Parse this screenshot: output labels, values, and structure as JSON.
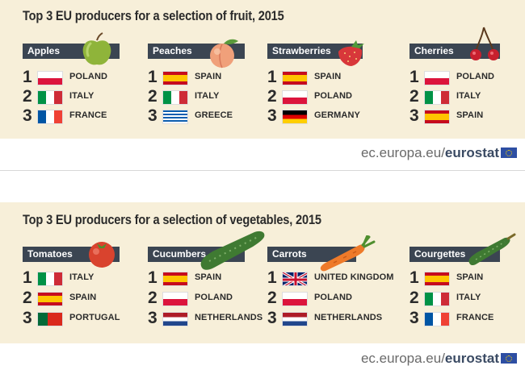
{
  "fruit": {
    "title": "Top 3 EU producers for a selection of fruit, 2015",
    "products": [
      {
        "name": "Apples",
        "icon": "apple-icon",
        "ranking": [
          "POLAND",
          "ITALY",
          "FRANCE"
        ]
      },
      {
        "name": "Peaches",
        "icon": "peach-icon",
        "ranking": [
          "SPAIN",
          "ITALY",
          "GREECE"
        ]
      },
      {
        "name": "Strawberries",
        "icon": "strawberry-icon",
        "ranking": [
          "SPAIN",
          "POLAND",
          "GERMANY"
        ]
      },
      {
        "name": "Cherries",
        "icon": "cherries-icon",
        "ranking": [
          "POLAND",
          "ITALY",
          "SPAIN"
        ]
      }
    ],
    "footer_domain": "ec.europa.eu/",
    "footer_brand": "eurostat"
  },
  "veg": {
    "title": "Top 3 EU producers for a selection of vegetables, 2015",
    "products": [
      {
        "name": "Tomatoes",
        "icon": "tomato-icon",
        "ranking": [
          "ITALY",
          "SPAIN",
          "PORTUGAL"
        ]
      },
      {
        "name": "Cucumbers",
        "icon": "cucumber-icon",
        "ranking": [
          "SPAIN",
          "POLAND",
          "NETHERLANDS"
        ]
      },
      {
        "name": "Carrots",
        "icon": "carrot-icon",
        "ranking": [
          "UNITED KINGDOM",
          "POLAND",
          "NETHERLANDS"
        ]
      },
      {
        "name": "Courgettes",
        "icon": "courgette-icon",
        "ranking": [
          "SPAIN",
          "ITALY",
          "FRANCE"
        ]
      }
    ],
    "footer_domain": "ec.europa.eu/",
    "footer_brand": "eurostat"
  },
  "ranks": [
    "1",
    "2",
    "3"
  ],
  "colors": {
    "panel_bg": "#f7efd9",
    "bar_bg": "#3b4552",
    "eurostat_blue": "#3a4a63"
  }
}
